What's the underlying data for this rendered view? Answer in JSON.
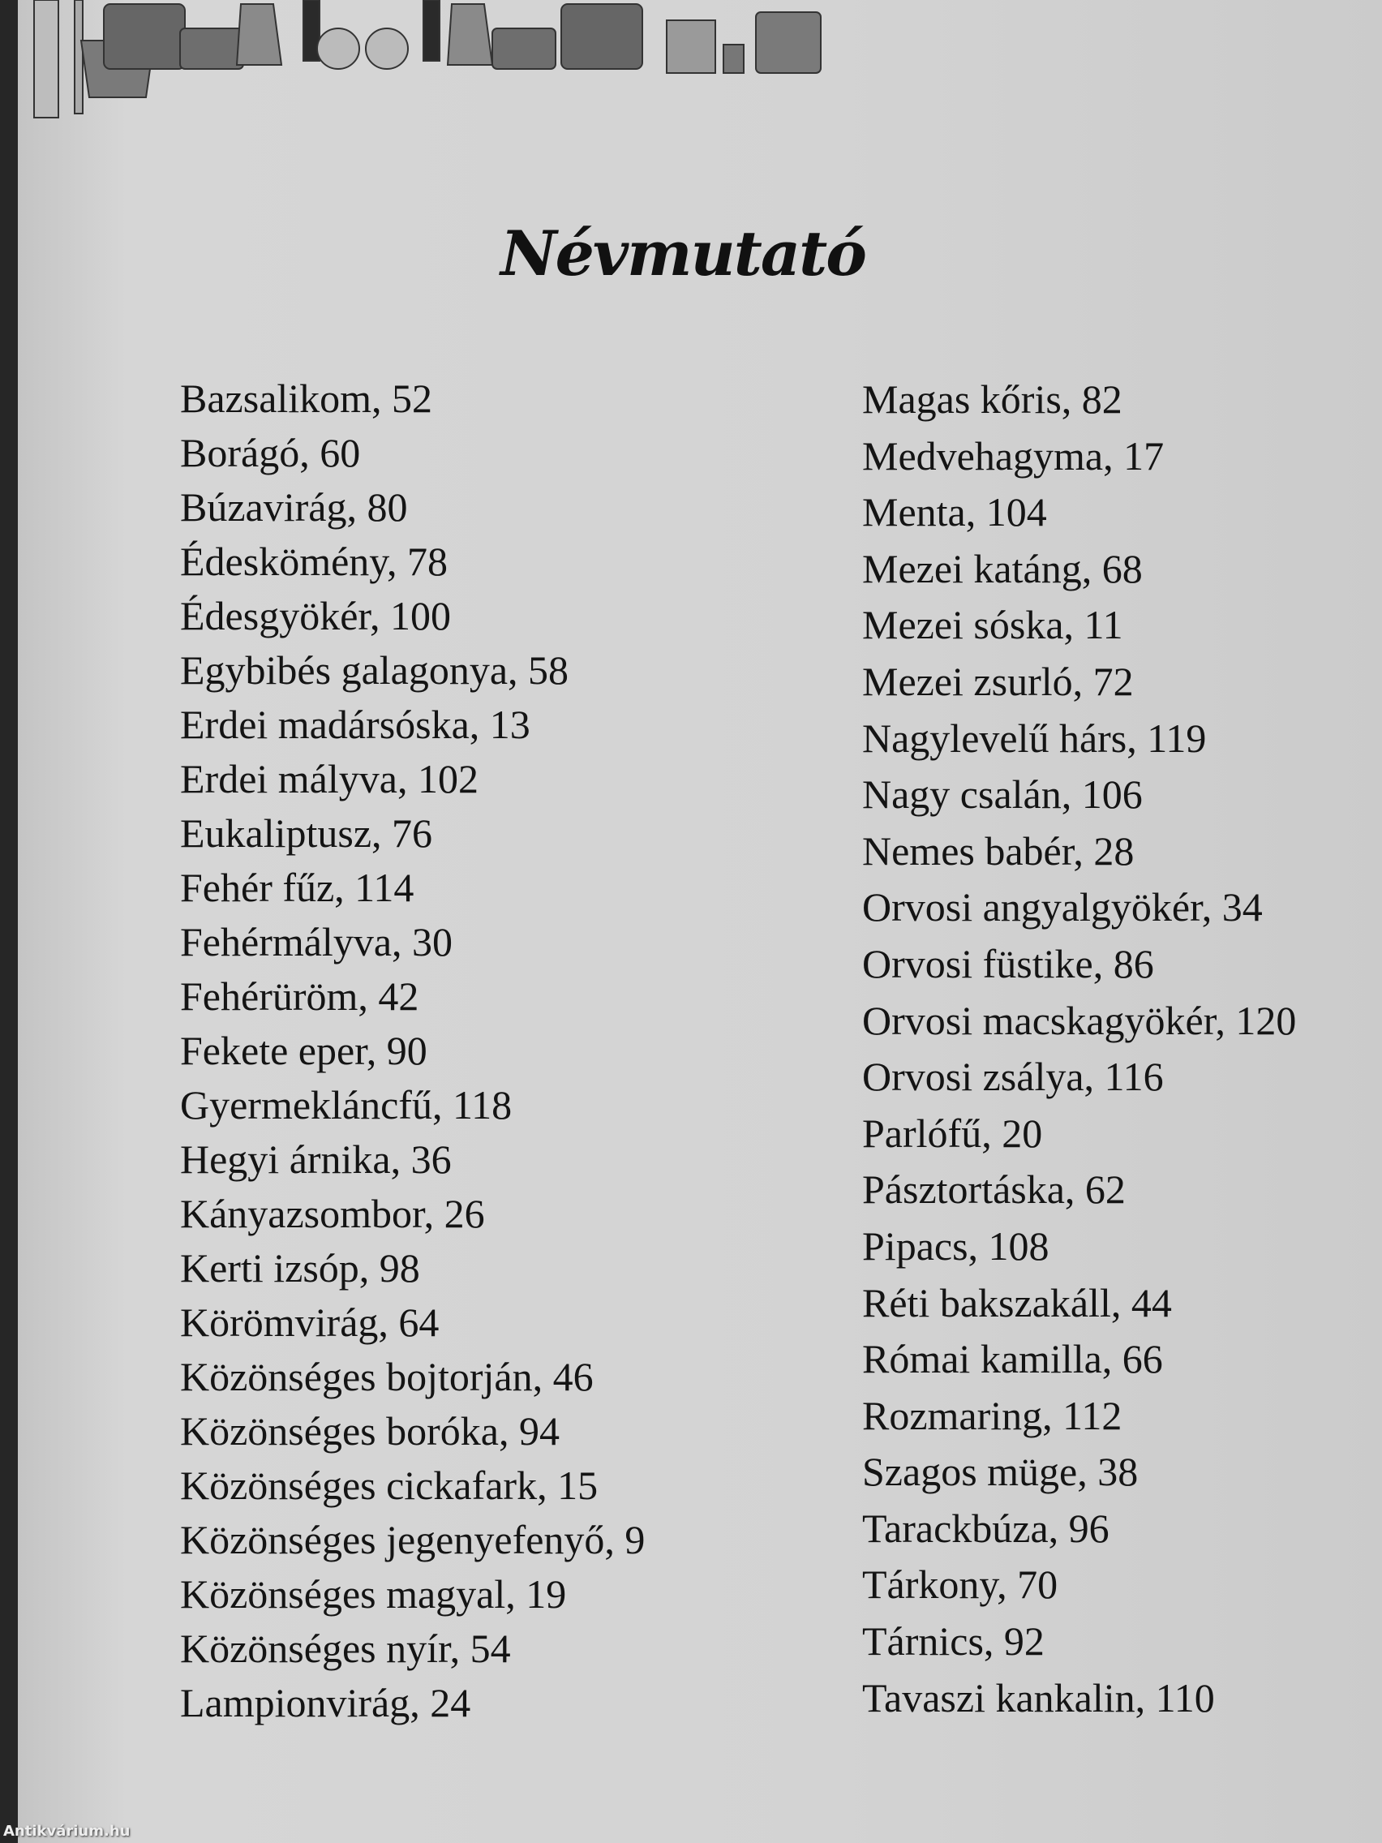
{
  "title": "Névmutató",
  "left_column": [
    "Bazsalikom, 52",
    "Borágó, 60",
    "Búzavirág, 80",
    "Édeskömény, 78",
    "Édesgyökér, 100",
    "Egybibés galagonya, 58",
    "Erdei madársóska, 13",
    "Erdei mályva, 102",
    "Eukaliptusz, 76",
    "Fehér fűz, 114",
    "Fehérmályva, 30",
    "Fehérüröm, 42",
    "Fekete eper, 90",
    "Gyermekláncfű, 118",
    "Hegyi árnika, 36",
    "Kányazsombor, 26",
    "Kerti izsóp, 98",
    "Körömvirág, 64",
    "Közönséges bojtorján, 46",
    "Közönséges boróka, 94",
    "Közönséges cickafark, 15",
    "Közönséges jegenyefenyő, 9",
    "Közönséges magyal, 19",
    "Közönséges nyír, 54",
    "Lampionvirág, 24"
  ],
  "right_column": [
    "Magas kőris, 82",
    "Medvehagyma, 17",
    "Menta, 104",
    "Mezei katáng, 68",
    "Mezei sóska, 11",
    "Mezei zsurló, 72",
    "Nagylevelű hárs, 119",
    "Nagy csalán, 106",
    "Nemes babér, 28",
    "Orvosi angyalgyökér, 34",
    "Orvosi füstike, 86",
    "Orvosi macskagyökér, 120",
    "Orvosi zsálya, 116",
    "Parlófű, 20",
    "Pásztortáska, 62",
    "Pipacs, 108",
    "Réti bakszakáll, 44",
    "Római kamilla, 66",
    "Rozmaring, 112",
    "Szagos müge, 38",
    "Tarackbúza, 96",
    "Tárkony, 70",
    "Tárnics, 92",
    "Tavaszi kankalin, 110"
  ],
  "decoration": "potted-plants-illustration",
  "watermark": "Antikvárium.hu"
}
